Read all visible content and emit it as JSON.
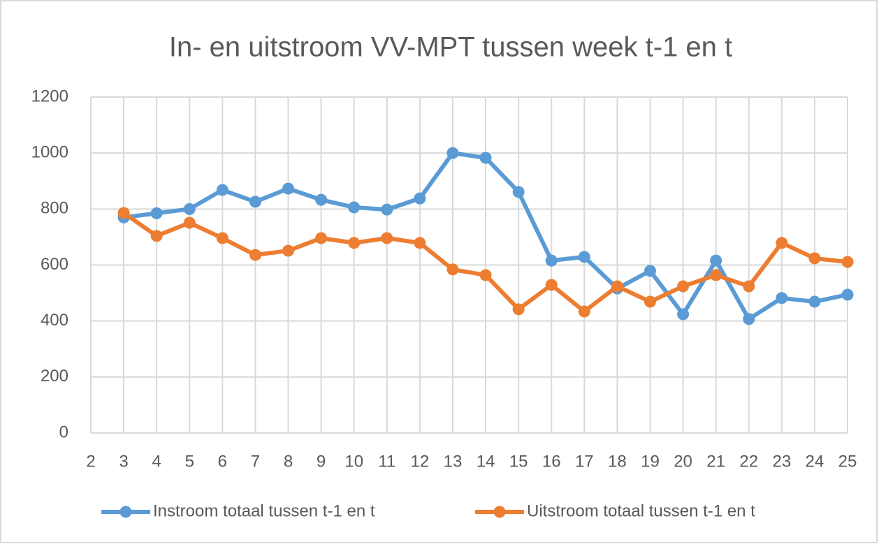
{
  "chart_data": {
    "type": "line",
    "title": "In- en uitstroom VV-MPT tussen week t-1 en t",
    "x": [
      3,
      4,
      5,
      6,
      7,
      8,
      9,
      10,
      11,
      12,
      13,
      14,
      15,
      16,
      17,
      18,
      19,
      20,
      21,
      22,
      23,
      24,
      25
    ],
    "series": [
      {
        "name": "Instroom totaal tussen t-1 en t",
        "color": "#5b9bd5",
        "values": [
          770,
          785,
          800,
          868,
          826,
          873,
          833,
          806,
          798,
          838,
          1000,
          983,
          861,
          616,
          629,
          516,
          579,
          424,
          616,
          407,
          482,
          469,
          494
        ]
      },
      {
        "name": "Uitstroom totaal tussen t-1 en t",
        "color": "#ed7d31",
        "values": [
          786,
          704,
          751,
          696,
          636,
          651,
          696,
          679,
          696,
          679,
          584,
          564,
          442,
          529,
          434,
          524,
          469,
          524,
          564,
          524,
          679,
          624,
          611
        ]
      }
    ],
    "xlim": [
      2,
      25
    ],
    "xticks": [
      2,
      3,
      4,
      5,
      6,
      7,
      8,
      9,
      10,
      11,
      12,
      13,
      14,
      15,
      16,
      17,
      18,
      19,
      20,
      21,
      22,
      23,
      24,
      25
    ],
    "ylim": [
      0,
      1200
    ],
    "yticks": [
      0,
      200,
      400,
      600,
      800,
      1000,
      1200
    ],
    "grid": true,
    "legend": "bottom"
  }
}
